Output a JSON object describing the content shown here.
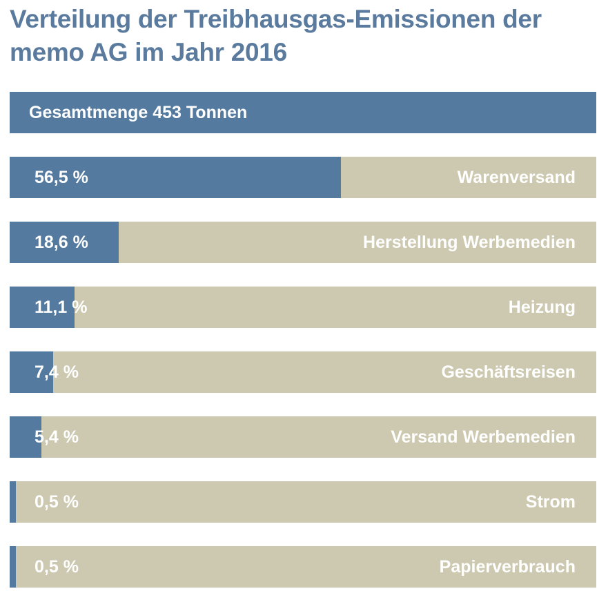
{
  "chart_data": {
    "type": "bar",
    "orientation": "horizontal",
    "title": "Verteilung der Treibhausgas-Emissionen der memo AG im Jahr 2016",
    "total_label": "Gesamtmenge 453 Tonnen",
    "xlim": [
      0,
      100
    ],
    "grid": false,
    "legend": "none",
    "colors": {
      "bar": "#557a9f",
      "track": "#cdc9b0",
      "title": "#5a7b9e",
      "label": "#ffffff"
    },
    "categories": [
      "Warenversand",
      "Herstellung Werbemedien",
      "Heizung",
      "Geschäftsreisen",
      "Versand Werbemedien",
      "Strom",
      "Papierverbrauch"
    ],
    "values": [
      56.5,
      18.6,
      11.1,
      7.4,
      5.4,
      0.5,
      0.5
    ],
    "value_labels": [
      "56,5 %",
      "18,6 %",
      "11,1 %",
      "7,4 %",
      "5,4 %",
      "0,5 %",
      "0,5 %"
    ]
  }
}
